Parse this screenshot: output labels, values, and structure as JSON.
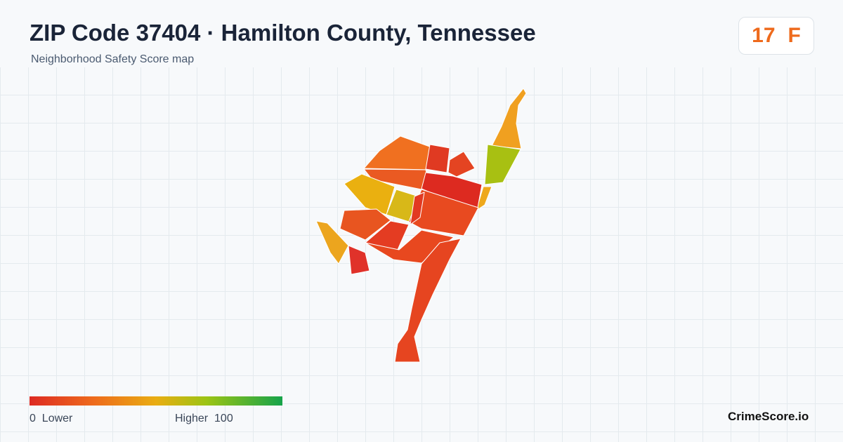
{
  "header": {
    "title": "ZIP Code 37404 · Hamilton County, Tennessee",
    "subtitle": "Neighborhood Safety Score map"
  },
  "score": {
    "value": 17,
    "grade": "F"
  },
  "legend": {
    "min": 0,
    "min_label": "Lower",
    "max_label": "Higher",
    "max": 100
  },
  "brand": "CrimeScore.io"
}
